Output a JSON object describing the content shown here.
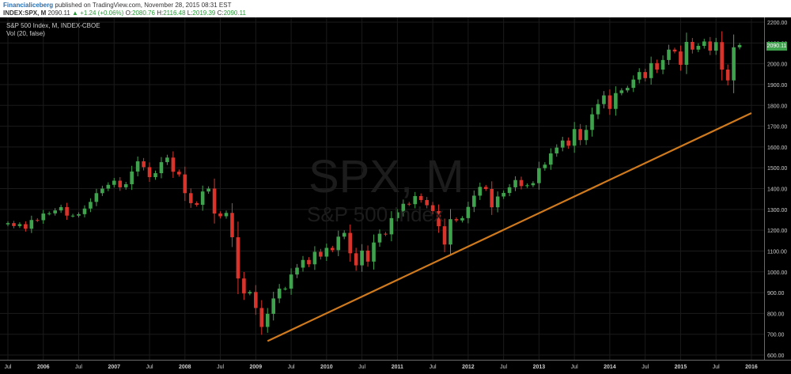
{
  "header": {
    "author": "Financialiceberg",
    "published": "published on TradingView.com, November 28, 2015 08:31 EST",
    "symbol": "INDEX:SPX, M",
    "last": "2090.11",
    "change": "+1.24 (+0.06%)",
    "open_label": "O:",
    "open": "2080.76",
    "high_label": "H:",
    "high": "2116.48",
    "low_label": "L:",
    "low": "2019.39",
    "close_label": "C:",
    "close": "2090.11"
  },
  "chart_title": "S&P 500 Index, M, INDEX-CBOE",
  "volume_label": "Vol (20, false)",
  "watermark": {
    "symbol": "SPX, M",
    "name": "S&P 500 Index"
  },
  "price_badge": "2090.11",
  "colors": {
    "background": "#000000",
    "up": "#3fa34d",
    "down": "#d9342b",
    "trendline": "#d07a1e",
    "badge": "#3fa34d"
  },
  "chart_data": {
    "type": "candlestick",
    "x_start": "2005-07",
    "x_end": "2015-11",
    "ylim": [
      600,
      2200
    ],
    "y_ticks": [
      2200.0,
      2100.0,
      2000.0,
      1900.0,
      1800.0,
      1700.0,
      1600.0,
      1500.0,
      1400.0,
      1300.0,
      1200.0,
      1100.0,
      1000.0,
      900.0,
      800.0,
      700.0,
      600.0
    ],
    "x_labels": [
      "Jul",
      "2006",
      "Jul",
      "2007",
      "Jul",
      "2008",
      "Jul",
      "2009",
      "Jul",
      "2010",
      "Jul",
      "2011",
      "Jul",
      "2012",
      "Jul",
      "2013",
      "Jul",
      "2014",
      "Jul",
      "2015",
      "Jul",
      "2016"
    ],
    "x_label_dates": [
      "2005-07",
      "2006-01",
      "2006-07",
      "2007-01",
      "2007-07",
      "2008-01",
      "2008-07",
      "2009-01",
      "2009-07",
      "2010-01",
      "2010-07",
      "2011-01",
      "2011-07",
      "2012-01",
      "2012-07",
      "2013-01",
      "2013-07",
      "2014-01",
      "2014-07",
      "2015-01",
      "2015-07",
      "2016-01"
    ],
    "closes": [
      1234,
      1220,
      1229,
      1207,
      1249,
      1248,
      1280,
      1281,
      1295,
      1311,
      1270,
      1270,
      1277,
      1304,
      1336,
      1378,
      1400,
      1418,
      1438,
      1406,
      1421,
      1482,
      1531,
      1503,
      1455,
      1474,
      1527,
      1549,
      1481,
      1468,
      1378,
      1330,
      1322,
      1386,
      1400,
      1280,
      1267,
      1283,
      1166,
      968,
      896,
      903,
      826,
      735,
      798,
      872,
      919,
      919,
      987,
      1020,
      1057,
      1036,
      1096,
      1073,
      1115,
      1104,
      1169,
      1187,
      1089,
      1031,
      1102,
      1049,
      1141,
      1183,
      1180,
      1258,
      1286,
      1327,
      1325,
      1364,
      1345,
      1320,
      1292,
      1219,
      1131,
      1253,
      1247,
      1258,
      1312,
      1366,
      1408,
      1398,
      1310,
      1362,
      1379,
      1406,
      1441,
      1412,
      1416,
      1426,
      1498,
      1515,
      1569,
      1597,
      1631,
      1606,
      1686,
      1633,
      1682,
      1757,
      1806,
      1848,
      1783,
      1859,
      1872,
      1884,
      1924,
      1960,
      1931,
      2003,
      1972,
      2018,
      2068,
      2059,
      1995,
      2105,
      2068,
      2086,
      2107,
      2063,
      2104,
      1972,
      1920,
      2079,
      2090
    ],
    "trendline": {
      "from": {
        "x": "2009-03",
        "y": 667
      },
      "to": {
        "x": "2016-01",
        "y": 1763
      }
    },
    "grid": true,
    "legend": "none"
  }
}
